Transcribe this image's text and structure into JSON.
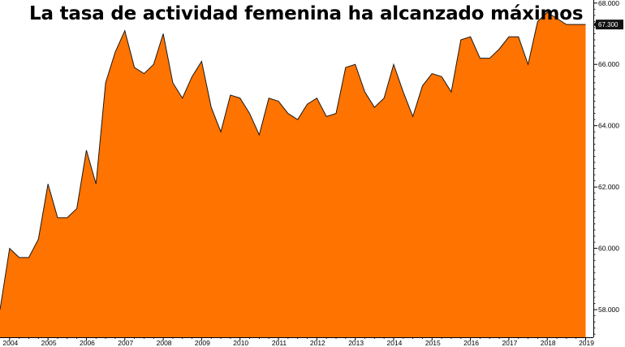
{
  "chart_data": {
    "type": "area",
    "title": "La tasa de actividad femenina ha alcanzado máximos",
    "xlabel": "",
    "ylabel": "",
    "x_ticks": [
      "2004",
      "2005",
      "2006",
      "2007",
      "2008",
      "2009",
      "2010",
      "2011",
      "2012",
      "2013",
      "2014",
      "2015",
      "2016",
      "2017",
      "2018",
      "2019"
    ],
    "y_ticks": [
      "58.000",
      "60.000",
      "62.000",
      "64.000",
      "66.000",
      "68.000"
    ],
    "ylim": [
      57.1,
      68.1
    ],
    "xlim": [
      2003.75,
      2019.2
    ],
    "last_value_label": "67.300",
    "grid": false,
    "legend": "none",
    "colors": {
      "fill": "#ff7300",
      "line": "#1a1a1a",
      "label_bg": "#111111"
    },
    "series": [
      {
        "x": [
          2003.75,
          2004.0,
          2004.25,
          2004.5,
          2004.75,
          2005.0,
          2005.25,
          2005.5,
          2005.75,
          2006.0,
          2006.25,
          2006.5,
          2006.75,
          2007.0,
          2007.25,
          2007.5,
          2007.75,
          2008.0,
          2008.25,
          2008.5,
          2008.75,
          2009.0,
          2009.25,
          2009.5,
          2009.75,
          2010.0,
          2010.25,
          2010.5,
          2010.75,
          2011.0,
          2011.25,
          2011.5,
          2011.75,
          2012.0,
          2012.25,
          2012.5,
          2012.75,
          2013.0,
          2013.25,
          2013.5,
          2013.75,
          2014.0,
          2014.25,
          2014.5,
          2014.75,
          2015.0,
          2015.25,
          2015.5,
          2015.75,
          2016.0,
          2016.25,
          2016.5,
          2016.75,
          2017.0,
          2017.25,
          2017.5,
          2017.75,
          2018.0,
          2018.25,
          2018.5,
          2018.75,
          2019.0
        ],
        "values": [
          58.0,
          60.0,
          59.7,
          59.7,
          60.3,
          62.1,
          61.0,
          61.0,
          61.3,
          63.2,
          62.1,
          65.4,
          66.4,
          67.1,
          65.9,
          65.7,
          66.0,
          67.0,
          65.4,
          64.9,
          65.6,
          66.1,
          64.6,
          63.8,
          65.0,
          64.9,
          64.4,
          63.7,
          64.9,
          64.8,
          64.4,
          64.2,
          64.7,
          64.9,
          64.3,
          64.4,
          65.9,
          66.0,
          65.1,
          64.6,
          64.9,
          66.0,
          65.1,
          64.3,
          65.3,
          65.7,
          65.6,
          65.1,
          66.8,
          66.9,
          66.2,
          66.2,
          66.5,
          66.9,
          66.9,
          66.0,
          67.4,
          67.7,
          67.5,
          67.3,
          67.3,
          67.3
        ]
      }
    ]
  }
}
